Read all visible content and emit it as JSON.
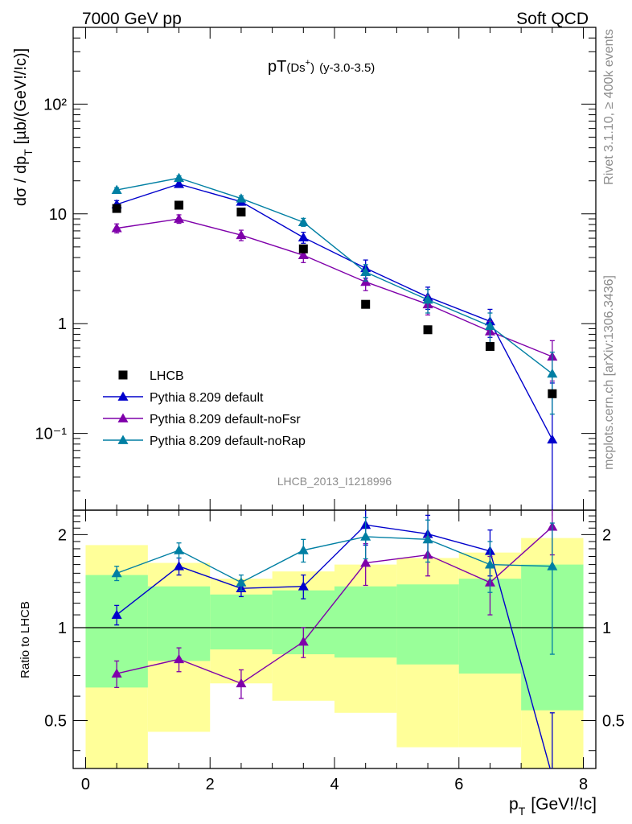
{
  "header": {
    "left": "7000 GeV pp",
    "right": "Soft QCD"
  },
  "side_labels": {
    "top": "Rivet 3.1.10, ≥ 400k events",
    "bottom": "mcplots.cern.ch [arXiv:1306.3436]"
  },
  "plot_title": {
    "main": "pT",
    "sub": "(Ds",
    "sup": "+",
    "close": ")",
    "range": "(y-3.0-3.5)"
  },
  "analysis_label": "LHCB_2013_I1218996",
  "axes": {
    "ylabel_main": "dσ / dp",
    "ylabel_sub": "T",
    "ylabel_unit": "[µb/(GeV!/!c)]",
    "ylabel_ratio": "Ratio to LHCB",
    "xlabel_main": "p",
    "xlabel_sub": "T",
    "xlabel_unit": "[GeV!/!c]"
  },
  "colors": {
    "data": "#000000",
    "default": "#0000cc",
    "noFsr": "#7f00aa",
    "noRap": "#007fa3",
    "band_yellow": "#ffff99",
    "band_green": "#99ff99"
  },
  "legend": [
    {
      "label": "LHCB",
      "marker": "square",
      "series": "data"
    },
    {
      "label": "Pythia 8.209 default",
      "marker": "triangle",
      "series": "default"
    },
    {
      "label": "Pythia 8.209 default-noFsr",
      "marker": "triangle",
      "series": "noFsr"
    },
    {
      "label": "Pythia 8.209 default-noRap",
      "marker": "triangle",
      "series": "noRap"
    }
  ],
  "chart_data": [
    {
      "type": "scatter",
      "title": "",
      "xlim": [
        -0.2,
        8.2
      ],
      "ylim": [
        0.02,
        500
      ],
      "yscale": "log",
      "x_bins": [
        [
          0,
          1
        ],
        [
          1,
          2
        ],
        [
          2,
          3
        ],
        [
          3,
          4
        ],
        [
          4,
          5
        ],
        [
          5,
          6
        ],
        [
          6,
          7
        ],
        [
          7,
          8
        ]
      ],
      "x": [
        0.5,
        1.5,
        2.5,
        3.5,
        4.5,
        5.5,
        6.5,
        7.5
      ],
      "y_tick_labels": [
        "10⁻¹",
        "1",
        "10",
        "10²"
      ],
      "x_tick_labels": [
        "0",
        "2",
        "4",
        "6",
        "8"
      ],
      "series": [
        {
          "name": "LHCB",
          "key": "data",
          "values": [
            11.2,
            12.0,
            10.4,
            4.8,
            1.5,
            0.88,
            0.62,
            0.23
          ]
        },
        {
          "name": "Pythia 8.209 default",
          "key": "default",
          "values": [
            12.2,
            18.7,
            12.9,
            6.1,
            3.2,
            1.75,
            1.05,
            0.088
          ],
          "err_up": [
            1.0,
            1.0,
            0.9,
            0.7,
            0.6,
            0.4,
            0.3,
            0.2
          ],
          "err_down": [
            1.0,
            1.0,
            0.9,
            0.7,
            0.6,
            0.4,
            0.3,
            0.088
          ]
        },
        {
          "name": "Pythia 8.209 default-noFsr",
          "key": "noFsr",
          "values": [
            7.4,
            9.0,
            6.4,
            4.2,
            2.4,
            1.5,
            0.85,
            0.5
          ],
          "err_up": [
            0.7,
            0.8,
            0.7,
            0.6,
            0.4,
            0.3,
            0.2,
            0.2
          ],
          "err_down": [
            0.7,
            0.8,
            0.7,
            0.6,
            0.4,
            0.3,
            0.2,
            0.2
          ]
        },
        {
          "name": "Pythia 8.209 default-noRap",
          "key": "noRap",
          "values": [
            16.5,
            21.2,
            13.8,
            8.4,
            2.95,
            1.65,
            0.95,
            0.35
          ],
          "err_up": [
            0.8,
            1.0,
            0.8,
            0.7,
            0.5,
            0.4,
            0.3,
            0.2
          ],
          "err_down": [
            0.8,
            1.0,
            0.8,
            0.7,
            0.5,
            0.4,
            0.3,
            0.2
          ]
        }
      ]
    },
    {
      "type": "scatter",
      "title": "",
      "ylabel": "Ratio to LHCB",
      "xlim": [
        -0.2,
        8.2
      ],
      "ylim": [
        0.35,
        2.4
      ],
      "yscale": "log",
      "y_tick_labels": [
        "0.5",
        "1",
        "2"
      ],
      "x": [
        0.5,
        1.5,
        2.5,
        3.5,
        4.5,
        5.5,
        6.5,
        7.5
      ],
      "bands": {
        "x_bins": [
          [
            0,
            1
          ],
          [
            1,
            2
          ],
          [
            2,
            3
          ],
          [
            3,
            4
          ],
          [
            4,
            5
          ],
          [
            5,
            6
          ],
          [
            6,
            7
          ],
          [
            7,
            8
          ]
        ],
        "green_lower": [
          0.64,
          0.78,
          0.85,
          0.82,
          0.8,
          0.76,
          0.71,
          0.54
        ],
        "green_upper": [
          1.48,
          1.36,
          1.28,
          1.32,
          1.36,
          1.38,
          1.44,
          1.6
        ],
        "yellow_lower": [
          0.3,
          0.46,
          0.66,
          0.58,
          0.53,
          0.41,
          0.41,
          0.3
        ],
        "yellow_upper": [
          1.85,
          1.62,
          1.44,
          1.52,
          1.6,
          1.68,
          1.75,
          1.95
        ]
      },
      "series": [
        {
          "name": "Pythia 8.209 default",
          "key": "default",
          "values": [
            1.1,
            1.58,
            1.34,
            1.36,
            2.15,
            2.01,
            1.77,
            0.33
          ],
          "err_up": [
            0.08,
            0.1,
            0.08,
            0.12,
            0.3,
            0.3,
            0.3,
            0.2
          ],
          "err_down": [
            0.08,
            0.1,
            0.08,
            0.12,
            0.3,
            0.3,
            0.3,
            0.2
          ]
        },
        {
          "name": "Pythia 8.209 default-noFsr",
          "key": "noFsr",
          "values": [
            0.71,
            0.79,
            0.66,
            0.9,
            1.62,
            1.72,
            1.4,
            2.12
          ],
          "err_up": [
            0.07,
            0.07,
            0.07,
            0.1,
            0.25,
            0.25,
            0.3,
            0.4
          ],
          "err_down": [
            0.07,
            0.07,
            0.07,
            0.1,
            0.25,
            0.25,
            0.3,
            0.4
          ]
        },
        {
          "name": "Pythia 8.209 default-noRap",
          "key": "noRap",
          "values": [
            1.5,
            1.78,
            1.4,
            1.78,
            1.97,
            1.93,
            1.6,
            1.58
          ],
          "err_up": [
            0.08,
            0.1,
            0.08,
            0.15,
            0.3,
            0.3,
            0.3,
            0.6
          ],
          "err_down": [
            0.08,
            0.1,
            0.08,
            0.15,
            0.3,
            0.3,
            0.3,
            0.76
          ]
        }
      ]
    }
  ]
}
